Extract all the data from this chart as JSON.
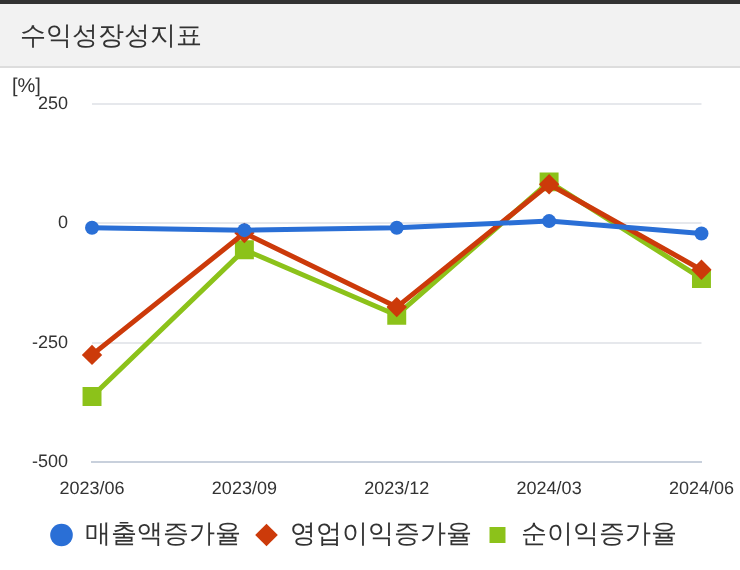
{
  "chart_data": {
    "type": "line",
    "title": "수익성장성지표",
    "ylabel": "[%]",
    "categories": [
      "2023/06",
      "2023/09",
      "2023/12",
      "2024/03",
      "2024/06"
    ],
    "series": [
      {
        "name": "매출액증가율",
        "color": "#2a6fd6",
        "marker": "circle",
        "values": [
          -9,
          -14,
          -9,
          5,
          -21
        ]
      },
      {
        "name": "영업이익증가율",
        "color": "#cc3a0a",
        "marker": "diamond",
        "values": [
          -275,
          -20,
          -175,
          82,
          -97
        ]
      },
      {
        "name": "순이익증가율",
        "color": "#8cc21a",
        "marker": "square",
        "values": [
          -362,
          -55,
          -192,
          87,
          -115
        ]
      }
    ],
    "ylim": [
      -500,
      250
    ],
    "yticks": [
      -500,
      -250,
      0,
      250
    ],
    "grid": "y",
    "legend": "bottom",
    "line_style": "solid"
  }
}
